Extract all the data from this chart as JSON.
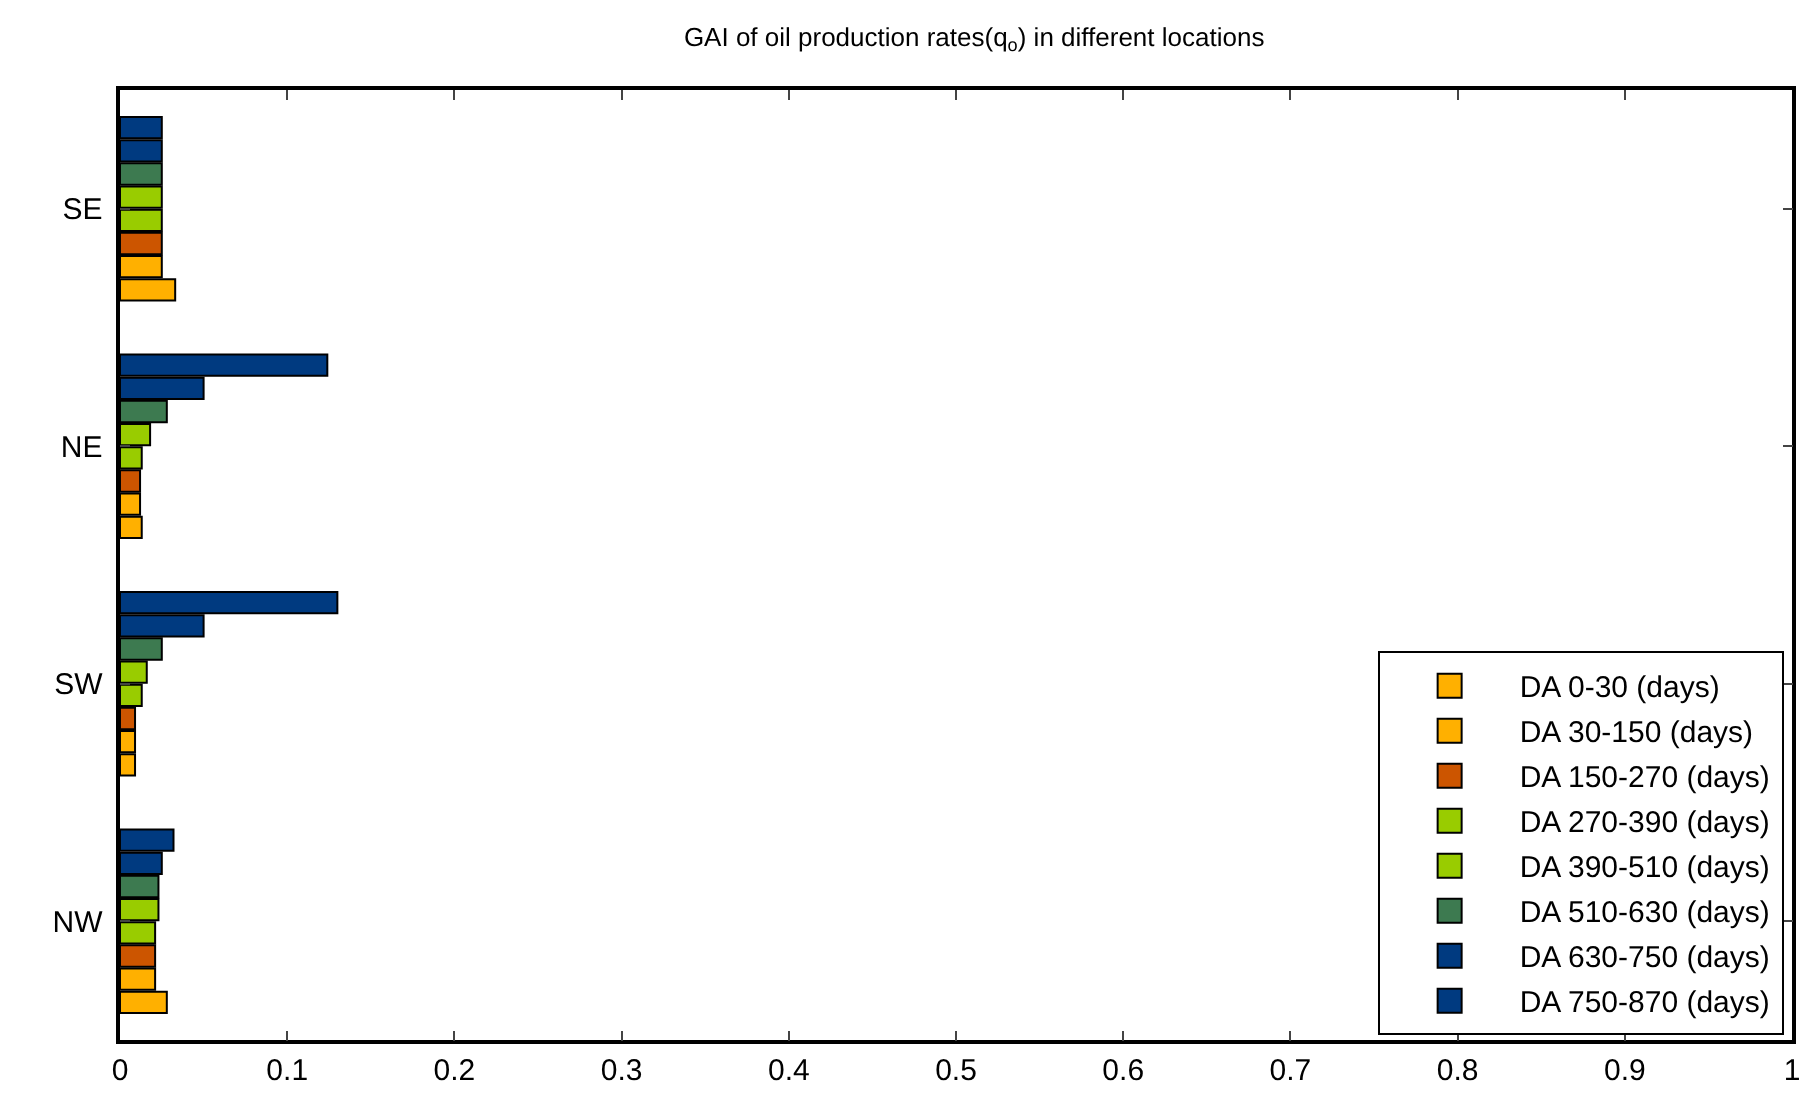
{
  "chart_data": {
    "type": "bar",
    "orientation": "horizontal",
    "title": "GAI of oil production rates(q$_{o}$) in different locations",
    "categories": [
      "SE",
      "NE",
      "SW",
      "NW"
    ],
    "series": [
      {
        "name": "DA 750-870 (days)",
        "color": "#003a80",
        "values": [
          0.025,
          0.124,
          0.13,
          0.032
        ]
      },
      {
        "name": "DA 630-750 (days)",
        "color": "#003a80",
        "values": [
          0.025,
          0.05,
          0.05,
          0.025
        ]
      },
      {
        "name": "DA 510-630 (days)",
        "color": "#3d7a50",
        "values": [
          0.025,
          0.028,
          0.025,
          0.023
        ]
      },
      {
        "name": "DA 390-510 (days)",
        "color": "#99cc00",
        "values": [
          0.025,
          0.018,
          0.016,
          0.023
        ]
      },
      {
        "name": "DA 270-390 (days)",
        "color": "#99cc00",
        "values": [
          0.025,
          0.013,
          0.013,
          0.021
        ]
      },
      {
        "name": "DA 150-270 (days)",
        "color": "#cc5500",
        "values": [
          0.025,
          0.012,
          0.009,
          0.021
        ]
      },
      {
        "name": "DA 30-150 (days)",
        "color": "#ffb000",
        "values": [
          0.025,
          0.012,
          0.009,
          0.021
        ]
      },
      {
        "name": "DA 0-30 (days)",
        "color": "#ffb000",
        "values": [
          0.033,
          0.013,
          0.009,
          0.028
        ]
      }
    ],
    "xlim": [
      0,
      1
    ],
    "xticks": [
      0,
      0.1,
      0.2,
      0.3,
      0.4,
      0.5,
      0.6,
      0.7,
      0.8,
      0.9,
      1
    ],
    "grid": false,
    "legend": "bottom right"
  }
}
